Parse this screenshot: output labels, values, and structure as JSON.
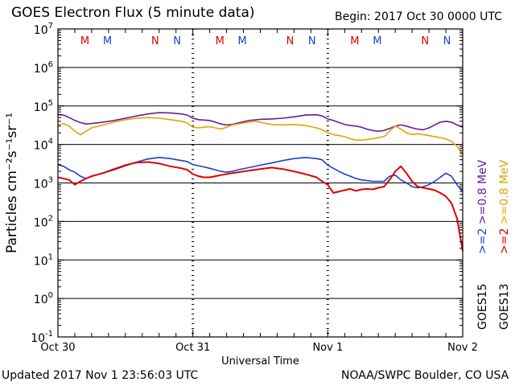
{
  "header": {
    "title": "GOES Electron Flux (5 minute data)",
    "begin": "Begin: 2017 Oct 30 0000 UTC"
  },
  "footer": {
    "updated": "Updated 2017 Nov  1 23:56:03 UTC",
    "credit": "NOAA/SWPC Boulder, CO USA"
  },
  "chart_data": {
    "type": "line",
    "title": "GOES Electron Flux (5 minute data)",
    "xlabel": "Universal Time",
    "ylabel": "Particles cm⁻²s⁻¹sr⁻¹",
    "yscale": "log",
    "ylim": [
      0.1,
      10000000
    ],
    "x_unit": "hours since 2017 Oct 30 0000 UTC",
    "xlim": [
      0,
      72
    ],
    "x_tick_labels": [
      {
        "x": 0,
        "label": "Oct 30"
      },
      {
        "x": 24,
        "label": "Oct 31"
      },
      {
        "x": 48,
        "label": "Nov 1"
      },
      {
        "x": 72,
        "label": "Nov 2"
      }
    ],
    "y_tick_labels": [
      {
        "value": 0.1,
        "base": "10",
        "exp": "-1"
      },
      {
        "value": 1,
        "base": "10",
        "exp": "0"
      },
      {
        "value": 10,
        "base": "10",
        "exp": "1"
      },
      {
        "value": 100,
        "base": "10",
        "exp": "2"
      },
      {
        "value": 1000,
        "base": "10",
        "exp": "3"
      },
      {
        "value": 10000,
        "base": "10",
        "exp": "4"
      },
      {
        "value": 100000,
        "base": "10",
        "exp": "5"
      },
      {
        "value": 1000000,
        "base": "10",
        "exp": "6"
      },
      {
        "value": 10000000,
        "base": "10",
        "exp": "7"
      }
    ],
    "grid": "horizontal lines at each decade",
    "threshold": {
      "value": 1000,
      "style": "dashed"
    },
    "legend": {
      "placement": "right (vertical)",
      "lines": [
        {
          "text": ">=0.8 MeV",
          "prefix_color": "#6a1b9a",
          "suffix": "",
          "text2": ">=0.8 MeV",
          "color2": "#e8a000"
        },
        {
          "text": ">=2",
          "color": "#1a3fd0",
          "text2": ">=2",
          "color2": "#e00000"
        },
        {
          "text": "GOES15",
          "text2": "GOES13"
        }
      ]
    },
    "markers": {
      "labels": [
        {
          "x": 4.8,
          "text": "M",
          "color": "#e00000"
        },
        {
          "x": 8.8,
          "text": "M",
          "color": "#1a3fd0"
        },
        {
          "x": 17.3,
          "text": "N",
          "color": "#e00000"
        },
        {
          "x": 21.2,
          "text": "N",
          "color": "#1a3fd0"
        },
        {
          "x": 28.8,
          "text": "M",
          "color": "#e00000"
        },
        {
          "x": 32.8,
          "text": "M",
          "color": "#1a3fd0"
        },
        {
          "x": 41.3,
          "text": "N",
          "color": "#e00000"
        },
        {
          "x": 45.2,
          "text": "N",
          "color": "#1a3fd0"
        },
        {
          "x": 52.8,
          "text": "M",
          "color": "#e00000"
        },
        {
          "x": 56.8,
          "text": "M",
          "color": "#1a3fd0"
        },
        {
          "x": 65.3,
          "text": "N",
          "color": "#e00000"
        },
        {
          "x": 69.2,
          "text": "N",
          "color": "#1a3fd0"
        }
      ]
    },
    "series": [
      {
        "name": "GOES15 >=0.8 MeV",
        "color": "#6a1b9a",
        "points": [
          [
            0,
            60000
          ],
          [
            1,
            58000
          ],
          [
            2,
            50000
          ],
          [
            3,
            42000
          ],
          [
            4,
            37000
          ],
          [
            5,
            34000
          ],
          [
            6,
            35000
          ],
          [
            8,
            38000
          ],
          [
            10,
            42000
          ],
          [
            12,
            48000
          ],
          [
            14,
            55000
          ],
          [
            16,
            62000
          ],
          [
            18,
            67000
          ],
          [
            20,
            66000
          ],
          [
            22,
            62000
          ],
          [
            23,
            58000
          ],
          [
            24,
            48000
          ],
          [
            25,
            44000
          ],
          [
            26,
            43000
          ],
          [
            27,
            42000
          ],
          [
            28,
            38000
          ],
          [
            29,
            34000
          ],
          [
            30,
            32000
          ],
          [
            31,
            33000
          ],
          [
            32,
            36000
          ],
          [
            34,
            42000
          ],
          [
            36,
            45000
          ],
          [
            38,
            46000
          ],
          [
            40,
            48000
          ],
          [
            42,
            52000
          ],
          [
            44,
            58000
          ],
          [
            46,
            59000
          ],
          [
            47,
            55000
          ],
          [
            48,
            46000
          ],
          [
            49,
            42000
          ],
          [
            50,
            37000
          ],
          [
            51,
            33000
          ],
          [
            52,
            31000
          ],
          [
            53,
            30000
          ],
          [
            54,
            28000
          ],
          [
            55,
            25000
          ],
          [
            56,
            23000
          ],
          [
            57,
            22000
          ],
          [
            58,
            23000
          ],
          [
            59,
            26000
          ],
          [
            60,
            30000
          ],
          [
            61,
            32000
          ],
          [
            62,
            30000
          ],
          [
            63,
            27000
          ],
          [
            64,
            25000
          ],
          [
            65,
            24000
          ],
          [
            66,
            27000
          ],
          [
            67,
            32000
          ],
          [
            68,
            38000
          ],
          [
            69,
            40000
          ],
          [
            70,
            38000
          ],
          [
            71,
            32000
          ],
          [
            72,
            28000
          ]
        ]
      },
      {
        "name": "GOES13 >=0.8 MeV",
        "color": "#e8a000",
        "points": [
          [
            0,
            32000
          ],
          [
            1,
            35000
          ],
          [
            2,
            30000
          ],
          [
            3,
            22000
          ],
          [
            4,
            18000
          ],
          [
            5,
            22000
          ],
          [
            6,
            27000
          ],
          [
            8,
            32000
          ],
          [
            10,
            38000
          ],
          [
            12,
            44000
          ],
          [
            14,
            48000
          ],
          [
            16,
            50000
          ],
          [
            18,
            48000
          ],
          [
            20,
            44000
          ],
          [
            22,
            40000
          ],
          [
            23,
            36000
          ],
          [
            24,
            28000
          ],
          [
            25,
            27000
          ],
          [
            26,
            28000
          ],
          [
            27,
            29000
          ],
          [
            28,
            27000
          ],
          [
            29,
            25000
          ],
          [
            30,
            28000
          ],
          [
            31,
            32000
          ],
          [
            32,
            34000
          ],
          [
            33,
            36000
          ],
          [
            34,
            38000
          ],
          [
            35,
            40000
          ],
          [
            36,
            38000
          ],
          [
            37,
            35000
          ],
          [
            38,
            33000
          ],
          [
            40,
            32000
          ],
          [
            42,
            33000
          ],
          [
            44,
            31000
          ],
          [
            46,
            27000
          ],
          [
            47,
            24000
          ],
          [
            48,
            20000
          ],
          [
            49,
            18000
          ],
          [
            50,
            17000
          ],
          [
            51,
            16000
          ],
          [
            52,
            14000
          ],
          [
            53,
            13000
          ],
          [
            54,
            13000
          ],
          [
            55,
            13500
          ],
          [
            56,
            14000
          ],
          [
            57,
            15000
          ],
          [
            58,
            16000
          ],
          [
            59,
            22000
          ],
          [
            60,
            30000
          ],
          [
            61,
            25000
          ],
          [
            62,
            20000
          ],
          [
            63,
            18000
          ],
          [
            64,
            19000
          ],
          [
            65,
            18000
          ],
          [
            66,
            17000
          ],
          [
            67,
            16000
          ],
          [
            68,
            15000
          ],
          [
            69,
            14000
          ],
          [
            70,
            12000
          ],
          [
            71,
            9000
          ],
          [
            72,
            5500
          ]
        ]
      },
      {
        "name": "GOES15 >=2 MeV",
        "color": "#1a3fd0",
        "points": [
          [
            0,
            3000
          ],
          [
            1,
            2700
          ],
          [
            2,
            2200
          ],
          [
            3,
            1900
          ],
          [
            4,
            1500
          ],
          [
            5,
            1300
          ],
          [
            6,
            1500
          ],
          [
            8,
            1800
          ],
          [
            10,
            2200
          ],
          [
            12,
            2800
          ],
          [
            14,
            3500
          ],
          [
            16,
            4200
          ],
          [
            18,
            4600
          ],
          [
            20,
            4300
          ],
          [
            22,
            3800
          ],
          [
            23,
            3600
          ],
          [
            24,
            3000
          ],
          [
            25,
            2800
          ],
          [
            26,
            2600
          ],
          [
            27,
            2400
          ],
          [
            28,
            2200
          ],
          [
            29,
            2000
          ],
          [
            30,
            1900
          ],
          [
            31,
            2000
          ],
          [
            32,
            2200
          ],
          [
            34,
            2500
          ],
          [
            36,
            2900
          ],
          [
            38,
            3300
          ],
          [
            40,
            3800
          ],
          [
            42,
            4300
          ],
          [
            44,
            4600
          ],
          [
            46,
            4300
          ],
          [
            47,
            4000
          ],
          [
            48,
            2900
          ],
          [
            49,
            2400
          ],
          [
            50,
            2000
          ],
          [
            51,
            1700
          ],
          [
            52,
            1500
          ],
          [
            53,
            1300
          ],
          [
            54,
            1200
          ],
          [
            55,
            1150
          ],
          [
            56,
            1100
          ],
          [
            57,
            1100
          ],
          [
            58,
            1100
          ],
          [
            59,
            1500
          ],
          [
            60,
            1600
          ],
          [
            61,
            1200
          ],
          [
            62,
            1000
          ],
          [
            63,
            800
          ],
          [
            64,
            750
          ],
          [
            65,
            800
          ],
          [
            66,
            900
          ],
          [
            67,
            1100
          ],
          [
            68,
            1400
          ],
          [
            69,
            1800
          ],
          [
            70,
            1500
          ],
          [
            71,
            900
          ],
          [
            72,
            600
          ]
        ]
      },
      {
        "name": "GOES13 >=2 MeV",
        "color": "#e00000",
        "points": [
          [
            0,
            1400
          ],
          [
            1,
            1300
          ],
          [
            2,
            1200
          ],
          [
            3,
            900
          ],
          [
            4,
            1100
          ],
          [
            5,
            1300
          ],
          [
            6,
            1500
          ],
          [
            8,
            1800
          ],
          [
            10,
            2300
          ],
          [
            12,
            2900
          ],
          [
            14,
            3400
          ],
          [
            16,
            3500
          ],
          [
            18,
            3200
          ],
          [
            20,
            2700
          ],
          [
            22,
            2400
          ],
          [
            23,
            2200
          ],
          [
            24,
            1700
          ],
          [
            25,
            1500
          ],
          [
            26,
            1400
          ],
          [
            27,
            1400
          ],
          [
            28,
            1500
          ],
          [
            29,
            1600
          ],
          [
            30,
            1700
          ],
          [
            31,
            1800
          ],
          [
            32,
            1900
          ],
          [
            34,
            2100
          ],
          [
            36,
            2300
          ],
          [
            38,
            2500
          ],
          [
            40,
            2300
          ],
          [
            42,
            2000
          ],
          [
            44,
            1700
          ],
          [
            46,
            1400
          ],
          [
            47,
            1100
          ],
          [
            48,
            900
          ],
          [
            49,
            550
          ],
          [
            50,
            600
          ],
          [
            51,
            650
          ],
          [
            52,
            700
          ],
          [
            53,
            620
          ],
          [
            54,
            680
          ],
          [
            55,
            700
          ],
          [
            56,
            680
          ],
          [
            57,
            750
          ],
          [
            58,
            800
          ],
          [
            59,
            1200
          ],
          [
            60,
            2000
          ],
          [
            61,
            2700
          ],
          [
            62,
            1800
          ],
          [
            63,
            1100
          ],
          [
            64,
            800
          ],
          [
            65,
            750
          ],
          [
            66,
            700
          ],
          [
            67,
            650
          ],
          [
            68,
            550
          ],
          [
            69,
            450
          ],
          [
            70,
            300
          ],
          [
            71,
            120
          ],
          [
            72,
            17
          ]
        ]
      }
    ]
  }
}
